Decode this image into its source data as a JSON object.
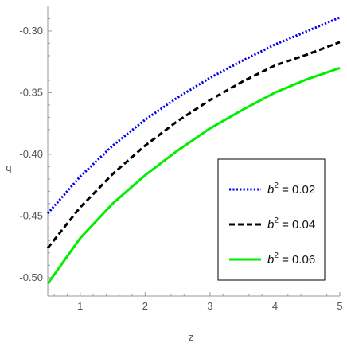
{
  "chart_data": {
    "type": "line",
    "title": "",
    "xlabel": "z",
    "ylabel": "q",
    "xlim": [
      0.5,
      5.0
    ],
    "ylim": [
      -0.515,
      -0.28
    ],
    "xticks": [
      1,
      2,
      3,
      4,
      5
    ],
    "yticks": [
      -0.5,
      -0.45,
      -0.4,
      -0.35,
      -0.3
    ],
    "ytick_labels": [
      "-0.50",
      "-0.45",
      "-0.40",
      "-0.35",
      "-0.30"
    ],
    "grid": false,
    "legend_position": "bottom-right",
    "x": [
      0.5,
      1.0,
      1.5,
      2.0,
      2.5,
      3.0,
      3.5,
      4.0,
      4.5,
      5.0
    ],
    "series": [
      {
        "name": "b² = 0.02",
        "legend_base": "b",
        "legend_sup": "2",
        "legend_value": " = 0.02",
        "color": "#0000ee",
        "style": "dotted",
        "values": [
          -0.448,
          -0.418,
          -0.393,
          -0.372,
          -0.354,
          -0.338,
          -0.324,
          -0.311,
          -0.3,
          -0.289
        ]
      },
      {
        "name": "b² = 0.04",
        "legend_base": "b",
        "legend_sup": "2",
        "legend_value": " = 0.04",
        "color": "#000000",
        "style": "dashed",
        "values": [
          -0.476,
          -0.443,
          -0.416,
          -0.393,
          -0.373,
          -0.356,
          -0.341,
          -0.328,
          -0.319,
          -0.309
        ]
      },
      {
        "name": "b² = 0.06",
        "legend_base": "b",
        "legend_sup": "2",
        "legend_value": " = 0.06",
        "color": "#00ee00",
        "style": "solid",
        "values": [
          -0.505,
          -0.468,
          -0.44,
          -0.417,
          -0.397,
          -0.379,
          -0.364,
          -0.35,
          -0.339,
          -0.33
        ]
      }
    ]
  }
}
